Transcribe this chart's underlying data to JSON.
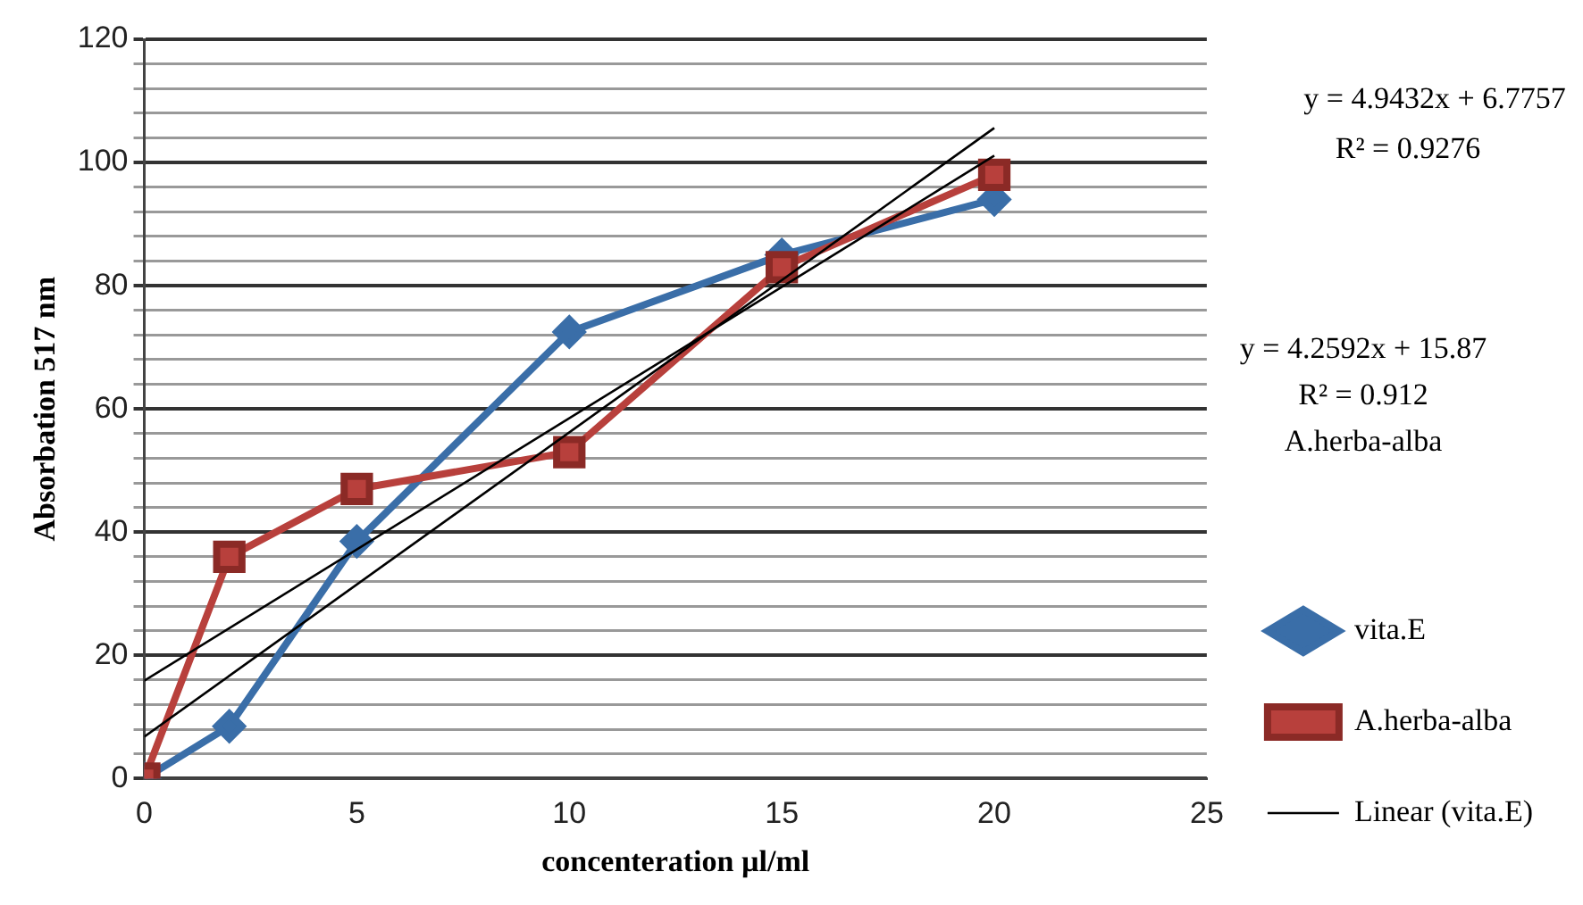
{
  "chart_data": {
    "type": "line",
    "xlabel": "concenteration µl/ml",
    "ylabel": "Absorbation 517 nm",
    "xlim": [
      0,
      25
    ],
    "xticks": [
      0,
      5,
      10,
      15,
      20,
      25
    ],
    "ylim": [
      0,
      120
    ],
    "yticks": [
      0,
      {
        "value": 4,
        "label": null
      },
      {
        "value": 8,
        "label": null
      },
      {
        "value": 12,
        "label": null
      },
      {
        "value": 16,
        "label": null
      },
      20,
      {
        "value": 24,
        "label": null
      },
      {
        "value": 28,
        "label": null
      },
      {
        "value": 32,
        "label": null
      },
      {
        "value": 36,
        "label": null
      },
      40,
      {
        "value": 44,
        "label": null
      },
      {
        "value": 48,
        "label": null
      },
      {
        "value": 52,
        "label": null
      },
      {
        "value": 56,
        "label": null
      },
      60,
      {
        "value": 64,
        "label": null
      },
      {
        "value": 68,
        "label": null
      },
      {
        "value": 72,
        "label": null
      },
      {
        "value": 76,
        "label": null
      },
      80,
      {
        "value": 84,
        "label": null
      },
      {
        "value": 88,
        "label": null
      },
      {
        "value": 92,
        "label": null
      },
      {
        "value": 96,
        "label": null
      },
      100,
      {
        "value": 104,
        "label": null
      },
      {
        "value": 108,
        "label": null
      },
      {
        "value": 112,
        "label": null
      },
      {
        "value": 116,
        "label": null
      },
      120
    ],
    "grid": "y",
    "legend": "right",
    "line_style": "solid",
    "series": [
      {
        "name": "vita.E",
        "color": "#3a6ea8",
        "marker": "diamond",
        "x": [
          0,
          2,
          5,
          10,
          15,
          20
        ],
        "values": [
          0,
          8.5,
          38.5,
          72.5,
          85,
          94
        ]
      },
      {
        "name": "A.herba-alba",
        "color": "#b8403c",
        "marker": "square",
        "x": [
          0,
          2,
          5,
          10,
          15,
          20
        ],
        "values": [
          0,
          36,
          47,
          53,
          83,
          98
        ]
      },
      {
        "name": "Linear (vita.E)",
        "color": "#000000",
        "marker": "none",
        "x": [
          0,
          20
        ],
        "values": [
          6.8,
          105.6
        ]
      },
      {
        "color": "#000000",
        "marker": "none",
        "x": [
          0,
          20
        ],
        "values": [
          15.9,
          101.1
        ]
      }
    ],
    "annotations": [
      "y = 4.9432x + 6.7757",
      "R² = 0.9276",
      "y = 4.2592x + 15.87",
      "R² = 0.912",
      "A.herba-alba"
    ]
  }
}
